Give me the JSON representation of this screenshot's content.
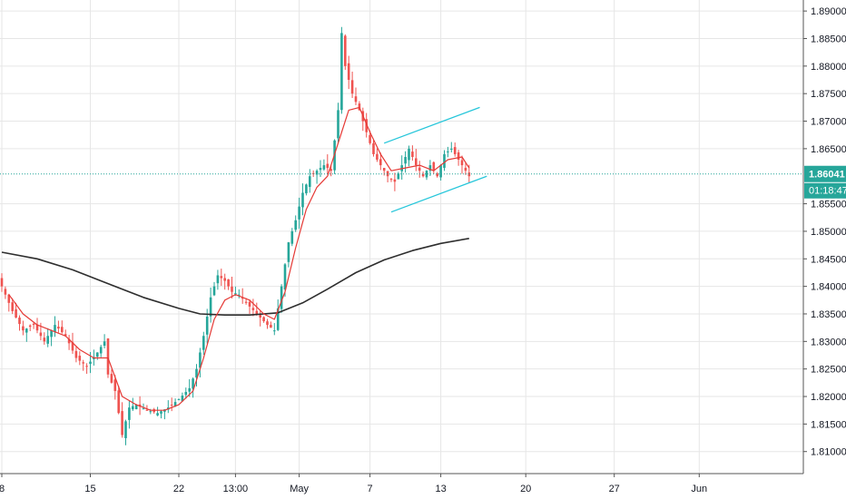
{
  "chart_data": {
    "type": "candlestick",
    "instrument_style": "forex candlestick chart with moving averages and channel",
    "y_axis": {
      "min": 1.806,
      "max": 1.892,
      "ticks": [
        "1.89000",
        "1.88500",
        "1.88000",
        "1.87500",
        "1.87000",
        "1.86500",
        "1.85500",
        "1.85000",
        "1.84500",
        "1.84000",
        "1.83500",
        "1.83000",
        "1.82500",
        "1.82000",
        "1.81500",
        "1.81000"
      ]
    },
    "x_axis": {
      "ticks": [
        {
          "label": "8",
          "i": 0
        },
        {
          "label": "15",
          "i": 25
        },
        {
          "label": "22",
          "i": 50
        },
        {
          "label": "13:00",
          "i": 66
        },
        {
          "label": "May",
          "i": 84
        },
        {
          "label": "7",
          "i": 104
        },
        {
          "label": "13",
          "i": 124
        },
        {
          "label": "20",
          "i": 148
        },
        {
          "label": "27",
          "i": 173
        },
        {
          "label": "Jun",
          "i": 197
        }
      ]
    },
    "last_price": {
      "value": 1.86041,
      "label": "1.86041",
      "countdown": "01:18:47"
    },
    "anchors": [
      {
        "i": 0,
        "v": 1.84
      },
      {
        "i": 3,
        "v": 1.8355
      },
      {
        "i": 6,
        "v": 1.832
      },
      {
        "i": 9,
        "v": 1.833
      },
      {
        "i": 12,
        "v": 1.83
      },
      {
        "i": 15,
        "v": 1.833
      },
      {
        "i": 18,
        "v": 1.831
      },
      {
        "i": 21,
        "v": 1.827
      },
      {
        "i": 24,
        "v": 1.8255
      },
      {
        "i": 27,
        "v": 1.828
      },
      {
        "i": 29,
        "v": 1.83
      },
      {
        "i": 30,
        "v": 1.824
      },
      {
        "i": 32,
        "v": 1.821
      },
      {
        "i": 34,
        "v": 1.813
      },
      {
        "i": 36,
        "v": 1.818
      },
      {
        "i": 38,
        "v": 1.8185
      },
      {
        "i": 41,
        "v": 1.8175
      },
      {
        "i": 44,
        "v": 1.817
      },
      {
        "i": 47,
        "v": 1.818
      },
      {
        "i": 50,
        "v": 1.8195
      },
      {
        "i": 53,
        "v": 1.8215
      },
      {
        "i": 55,
        "v": 1.825
      },
      {
        "i": 57,
        "v": 1.831
      },
      {
        "i": 59,
        "v": 1.838
      },
      {
        "i": 61,
        "v": 1.842
      },
      {
        "i": 63,
        "v": 1.841
      },
      {
        "i": 65,
        "v": 1.839
      },
      {
        "i": 67,
        "v": 1.8385
      },
      {
        "i": 69,
        "v": 1.837
      },
      {
        "i": 72,
        "v": 1.835
      },
      {
        "i": 75,
        "v": 1.833
      },
      {
        "i": 77,
        "v": 1.832
      },
      {
        "i": 79,
        "v": 1.84
      },
      {
        "i": 81,
        "v": 1.848
      },
      {
        "i": 83,
        "v": 1.852
      },
      {
        "i": 85,
        "v": 1.857
      },
      {
        "i": 87,
        "v": 1.86
      },
      {
        "i": 89,
        "v": 1.861
      },
      {
        "i": 91,
        "v": 1.862
      },
      {
        "i": 93,
        "v": 1.861
      },
      {
        "i": 95,
        "v": 1.872
      },
      {
        "i": 96,
        "v": 1.886
      },
      {
        "i": 97,
        "v": 1.88
      },
      {
        "i": 99,
        "v": 1.875
      },
      {
        "i": 101,
        "v": 1.872
      },
      {
        "i": 103,
        "v": 1.868
      },
      {
        "i": 105,
        "v": 1.864
      },
      {
        "i": 107,
        "v": 1.862
      },
      {
        "i": 109,
        "v": 1.86
      },
      {
        "i": 111,
        "v": 1.859
      },
      {
        "i": 113,
        "v": 1.862
      },
      {
        "i": 115,
        "v": 1.865
      },
      {
        "i": 117,
        "v": 1.862
      },
      {
        "i": 119,
        "v": 1.86
      },
      {
        "i": 121,
        "v": 1.862
      },
      {
        "i": 123,
        "v": 1.86
      },
      {
        "i": 125,
        "v": 1.864
      },
      {
        "i": 127,
        "v": 1.865
      },
      {
        "i": 129,
        "v": 1.863
      },
      {
        "i": 131,
        "v": 1.861
      },
      {
        "i": 132,
        "v": 1.86
      }
    ],
    "ma_fast": [
      {
        "i": 2,
        "v": 1.8385
      },
      {
        "i": 6,
        "v": 1.835
      },
      {
        "i": 10,
        "v": 1.833
      },
      {
        "i": 14,
        "v": 1.832
      },
      {
        "i": 18,
        "v": 1.831
      },
      {
        "i": 22,
        "v": 1.8285
      },
      {
        "i": 26,
        "v": 1.827
      },
      {
        "i": 30,
        "v": 1.827
      },
      {
        "i": 34,
        "v": 1.82
      },
      {
        "i": 38,
        "v": 1.8185
      },
      {
        "i": 42,
        "v": 1.8175
      },
      {
        "i": 46,
        "v": 1.8175
      },
      {
        "i": 50,
        "v": 1.8185
      },
      {
        "i": 54,
        "v": 1.821
      },
      {
        "i": 57,
        "v": 1.827
      },
      {
        "i": 60,
        "v": 1.834
      },
      {
        "i": 63,
        "v": 1.8375
      },
      {
        "i": 66,
        "v": 1.8385
      },
      {
        "i": 70,
        "v": 1.8375
      },
      {
        "i": 74,
        "v": 1.835
      },
      {
        "i": 77,
        "v": 1.834
      },
      {
        "i": 80,
        "v": 1.839
      },
      {
        "i": 83,
        "v": 1.847
      },
      {
        "i": 86,
        "v": 1.854
      },
      {
        "i": 89,
        "v": 1.858
      },
      {
        "i": 92,
        "v": 1.86
      },
      {
        "i": 95,
        "v": 1.866
      },
      {
        "i": 98,
        "v": 1.872
      },
      {
        "i": 101,
        "v": 1.8725
      },
      {
        "i": 104,
        "v": 1.868
      },
      {
        "i": 107,
        "v": 1.864
      },
      {
        "i": 110,
        "v": 1.861
      },
      {
        "i": 114,
        "v": 1.8615
      },
      {
        "i": 118,
        "v": 1.862
      },
      {
        "i": 122,
        "v": 1.861
      },
      {
        "i": 126,
        "v": 1.863
      },
      {
        "i": 130,
        "v": 1.8635
      },
      {
        "i": 132,
        "v": 1.8615
      }
    ],
    "ma_slow": [
      {
        "i": 0,
        "v": 1.8462
      },
      {
        "i": 10,
        "v": 1.845
      },
      {
        "i": 20,
        "v": 1.843
      },
      {
        "i": 30,
        "v": 1.8405
      },
      {
        "i": 40,
        "v": 1.838
      },
      {
        "i": 50,
        "v": 1.836
      },
      {
        "i": 56,
        "v": 1.835
      },
      {
        "i": 63,
        "v": 1.8348
      },
      {
        "i": 70,
        "v": 1.8348
      },
      {
        "i": 78,
        "v": 1.8352
      },
      {
        "i": 85,
        "v": 1.837
      },
      {
        "i": 92,
        "v": 1.8395
      },
      {
        "i": 100,
        "v": 1.8425
      },
      {
        "i": 108,
        "v": 1.8448
      },
      {
        "i": 116,
        "v": 1.8465
      },
      {
        "i": 124,
        "v": 1.8478
      },
      {
        "i": 132,
        "v": 1.8487
      }
    ],
    "channel": {
      "upper": [
        {
          "i": 108,
          "v": 1.866
        },
        {
          "i": 135,
          "v": 1.8725
        }
      ],
      "lower": [
        {
          "i": 110,
          "v": 1.8535
        },
        {
          "i": 137,
          "v": 1.86
        }
      ]
    },
    "colors": {
      "up": "#26a69a",
      "down": "#ef5350",
      "ma_fast": "#e53935",
      "ma_slow": "#2e2e2e",
      "channel": "#26c6da",
      "last_price_line": "#26a69a",
      "grid": "#e6e6e6",
      "axis_text": "#131722",
      "countdown_bg": "#26a69a"
    },
    "grid": true
  }
}
